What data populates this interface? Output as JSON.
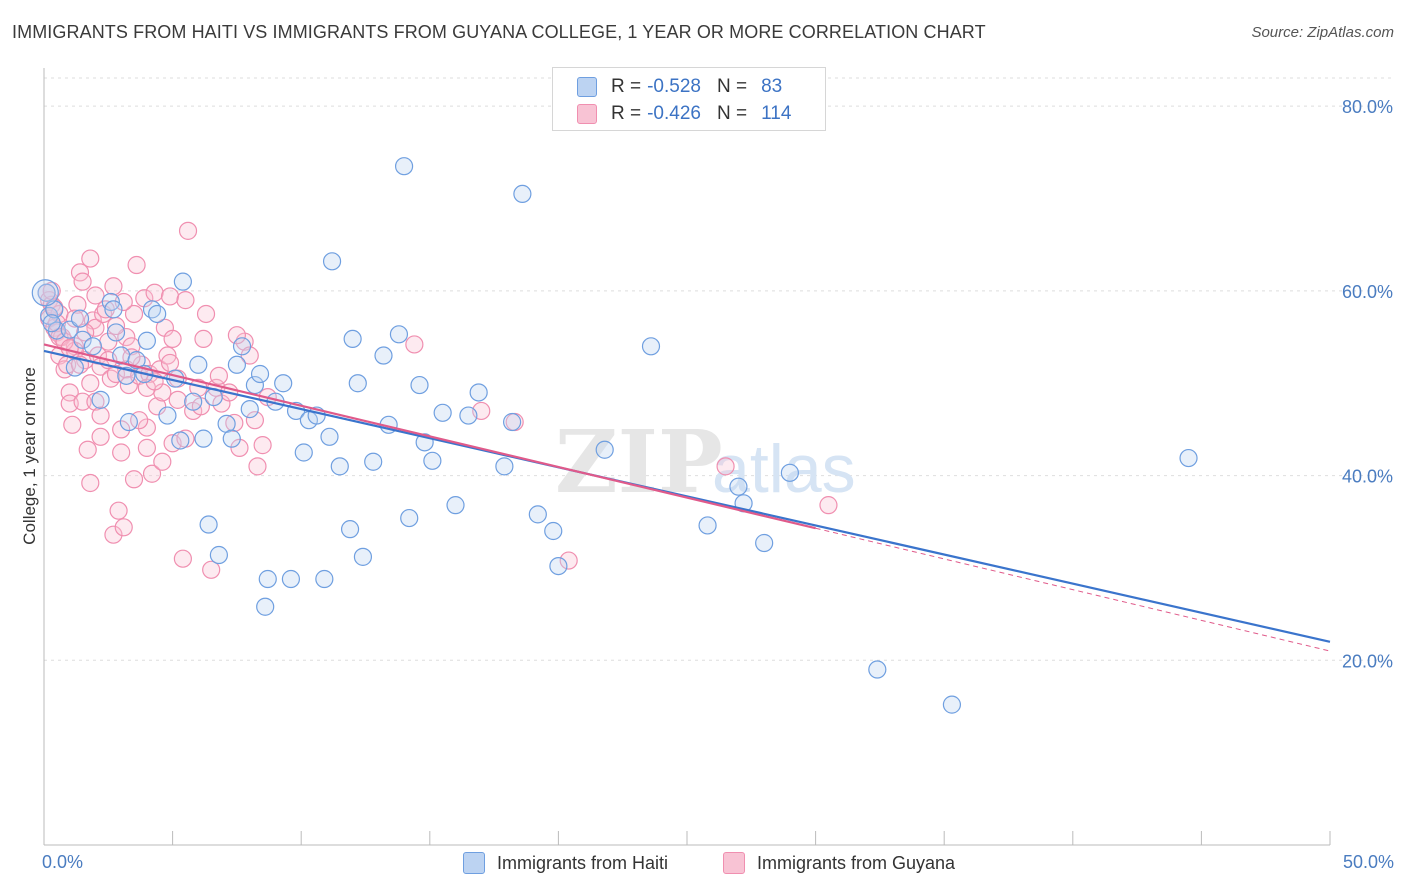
{
  "chart_data": {
    "type": "scatter",
    "title": "IMMIGRANTS FROM HAITI VS IMMIGRANTS FROM GUYANA COLLEGE, 1 YEAR OR MORE CORRELATION CHART",
    "source": "Source: ZipAtlas.com",
    "xlabel": "",
    "ylabel": "College, 1 year or more",
    "xlim": [
      0,
      50
    ],
    "ylim": [
      0,
      85
    ],
    "x_tick_labels": [
      "0.0%",
      "50.0%"
    ],
    "y_ticks": [
      20,
      40,
      60,
      80
    ],
    "y_tick_labels": [
      "20.0%",
      "40.0%",
      "60.0%",
      "80.0%"
    ],
    "grid": true,
    "legend_placement": "top-center",
    "watermark": "ZIPatlas",
    "series": [
      {
        "name": "Immigrants from Haiti",
        "color": "#6f9fe0",
        "line_color": "#3a74cc",
        "r": "-0.528",
        "n": "83",
        "trend": {
          "x0": 0,
          "y0": 53.5,
          "x1": 50,
          "y1": 22.0
        },
        "points": [
          [
            0.1,
            59.8
          ],
          [
            0.2,
            57.3
          ],
          [
            0.4,
            58.0
          ],
          [
            0.5,
            55.7
          ],
          [
            0.3,
            56.5
          ],
          [
            1.0,
            55.8
          ],
          [
            1.2,
            51.7
          ],
          [
            1.4,
            57.0
          ],
          [
            1.5,
            54.7
          ],
          [
            1.9,
            54.0
          ],
          [
            2.2,
            48.2
          ],
          [
            2.6,
            58.8
          ],
          [
            2.7,
            58.0
          ],
          [
            2.8,
            55.5
          ],
          [
            3.0,
            53.0
          ],
          [
            3.2,
            50.8
          ],
          [
            3.3,
            45.8
          ],
          [
            3.6,
            52.5
          ],
          [
            3.9,
            51.0
          ],
          [
            4.0,
            54.6
          ],
          [
            4.2,
            58.0
          ],
          [
            4.4,
            57.5
          ],
          [
            4.8,
            46.5
          ],
          [
            5.1,
            50.5
          ],
          [
            5.3,
            43.8
          ],
          [
            5.4,
            61.0
          ],
          [
            5.8,
            48.0
          ],
          [
            6.0,
            52.0
          ],
          [
            6.2,
            44.0
          ],
          [
            6.4,
            34.7
          ],
          [
            6.6,
            48.5
          ],
          [
            6.8,
            31.4
          ],
          [
            7.1,
            45.6
          ],
          [
            7.3,
            44.0
          ],
          [
            7.5,
            52.0
          ],
          [
            7.7,
            54.0
          ],
          [
            8.0,
            47.2
          ],
          [
            8.2,
            49.8
          ],
          [
            8.4,
            51.0
          ],
          [
            8.7,
            28.8
          ],
          [
            8.6,
            25.8
          ],
          [
            9.0,
            48.0
          ],
          [
            9.3,
            50.0
          ],
          [
            9.6,
            28.8
          ],
          [
            9.8,
            47.0
          ],
          [
            10.1,
            42.5
          ],
          [
            10.3,
            46.0
          ],
          [
            10.6,
            46.5
          ],
          [
            10.9,
            28.8
          ],
          [
            11.1,
            44.2
          ],
          [
            11.2,
            63.2
          ],
          [
            11.5,
            41.0
          ],
          [
            11.9,
            34.2
          ],
          [
            12.0,
            54.8
          ],
          [
            12.2,
            50.0
          ],
          [
            12.4,
            31.2
          ],
          [
            12.8,
            41.5
          ],
          [
            13.2,
            53.0
          ],
          [
            13.4,
            45.5
          ],
          [
            13.8,
            55.3
          ],
          [
            14.0,
            73.5
          ],
          [
            14.2,
            35.4
          ],
          [
            14.6,
            49.8
          ],
          [
            14.8,
            43.6
          ],
          [
            15.1,
            41.6
          ],
          [
            15.5,
            46.8
          ],
          [
            16.0,
            36.8
          ],
          [
            16.5,
            46.5
          ],
          [
            16.9,
            49.0
          ],
          [
            17.9,
            41.0
          ],
          [
            18.2,
            45.8
          ],
          [
            18.6,
            70.5
          ],
          [
            19.2,
            35.8
          ],
          [
            19.8,
            34.0
          ],
          [
            20.0,
            30.2
          ],
          [
            21.8,
            42.8
          ],
          [
            23.6,
            54.0
          ],
          [
            25.8,
            34.6
          ],
          [
            27.0,
            38.8
          ],
          [
            27.2,
            37.0
          ],
          [
            28.0,
            32.7
          ],
          [
            29.0,
            40.3
          ],
          [
            32.4,
            19.0
          ],
          [
            35.3,
            15.2
          ],
          [
            44.5,
            41.9
          ]
        ]
      },
      {
        "name": "Immigrants from Guyana",
        "color": "#f08fb0",
        "line_color": "#e05a8a",
        "r": "-0.426",
        "n": "114",
        "trend": {
          "x0": 0,
          "y0": 54.2,
          "x1": 30,
          "y1": 34.3
        },
        "trend_dashed": {
          "x0": 30,
          "y0": 34.3,
          "x1": 50,
          "y1": 21.0
        },
        "points": [
          [
            0.1,
            59.8
          ],
          [
            0.2,
            59.0
          ],
          [
            0.2,
            57.0
          ],
          [
            0.3,
            58.5
          ],
          [
            0.4,
            56.0
          ],
          [
            0.5,
            55.5
          ],
          [
            0.6,
            57.5
          ],
          [
            0.6,
            53.0
          ],
          [
            0.7,
            55.0
          ],
          [
            0.8,
            51.5
          ],
          [
            0.9,
            52.0
          ],
          [
            1.0,
            49.0
          ],
          [
            1.0,
            47.8
          ],
          [
            1.1,
            45.5
          ],
          [
            1.2,
            54.0
          ],
          [
            1.2,
            53.5
          ],
          [
            1.3,
            58.5
          ],
          [
            1.4,
            62.0
          ],
          [
            1.5,
            61.0
          ],
          [
            1.5,
            48.0
          ],
          [
            1.6,
            52.5
          ],
          [
            1.7,
            42.8
          ],
          [
            1.8,
            63.5
          ],
          [
            1.8,
            39.2
          ],
          [
            1.9,
            56.8
          ],
          [
            2.0,
            59.5
          ],
          [
            2.0,
            56.0
          ],
          [
            2.1,
            53.0
          ],
          [
            2.2,
            51.8
          ],
          [
            2.2,
            44.2
          ],
          [
            2.3,
            57.5
          ],
          [
            2.4,
            58.0
          ],
          [
            2.5,
            52.5
          ],
          [
            2.6,
            50.5
          ],
          [
            2.7,
            60.5
          ],
          [
            2.7,
            33.6
          ],
          [
            2.8,
            51.0
          ],
          [
            2.9,
            36.2
          ],
          [
            3.0,
            45.0
          ],
          [
            3.0,
            42.5
          ],
          [
            3.1,
            34.4
          ],
          [
            3.2,
            51.5
          ],
          [
            3.2,
            55.0
          ],
          [
            3.3,
            49.8
          ],
          [
            3.4,
            54.0
          ],
          [
            3.5,
            57.5
          ],
          [
            3.5,
            39.6
          ],
          [
            3.6,
            62.8
          ],
          [
            3.7,
            50.8
          ],
          [
            3.8,
            52.0
          ],
          [
            3.9,
            59.2
          ],
          [
            4.0,
            45.2
          ],
          [
            4.0,
            43.0
          ],
          [
            4.1,
            51.0
          ],
          [
            4.2,
            40.2
          ],
          [
            4.3,
            59.8
          ],
          [
            4.4,
            47.5
          ],
          [
            4.5,
            51.5
          ],
          [
            4.6,
            49.0
          ],
          [
            4.7,
            56.0
          ],
          [
            4.8,
            53.0
          ],
          [
            4.9,
            59.4
          ],
          [
            5.0,
            54.8
          ],
          [
            5.0,
            43.5
          ],
          [
            5.2,
            50.5
          ],
          [
            5.4,
            31.0
          ],
          [
            5.5,
            59.0
          ],
          [
            5.6,
            66.5
          ],
          [
            5.8,
            47.0
          ],
          [
            6.0,
            49.5
          ],
          [
            6.2,
            54.8
          ],
          [
            6.3,
            57.5
          ],
          [
            6.5,
            29.8
          ],
          [
            6.7,
            49.5
          ],
          [
            6.9,
            47.8
          ],
          [
            7.2,
            49.0
          ],
          [
            7.4,
            45.7
          ],
          [
            7.6,
            43.0
          ],
          [
            7.8,
            54.5
          ],
          [
            8.0,
            53.0
          ],
          [
            8.2,
            46.0
          ],
          [
            8.3,
            41.0
          ],
          [
            8.5,
            43.3
          ],
          [
            8.7,
            48.5
          ],
          [
            14.4,
            54.2
          ],
          [
            17.0,
            47.0
          ],
          [
            18.3,
            45.8
          ],
          [
            20.4,
            30.8
          ],
          [
            26.5,
            41.0
          ],
          [
            30.5,
            36.8
          ],
          [
            0.3,
            60.0
          ],
          [
            0.4,
            58.2
          ],
          [
            0.5,
            56.5
          ],
          [
            0.6,
            55.0
          ],
          [
            0.8,
            54.5
          ],
          [
            1.0,
            53.8
          ],
          [
            1.2,
            57.0
          ],
          [
            1.4,
            52.0
          ],
          [
            1.6,
            55.5
          ],
          [
            1.8,
            50.0
          ],
          [
            2.0,
            48.0
          ],
          [
            2.2,
            46.5
          ],
          [
            2.5,
            54.5
          ],
          [
            2.8,
            56.2
          ],
          [
            3.1,
            58.8
          ],
          [
            3.4,
            52.8
          ],
          [
            3.7,
            46.0
          ],
          [
            4.0,
            49.5
          ],
          [
            4.3,
            50.2
          ],
          [
            4.6,
            41.5
          ],
          [
            4.9,
            52.2
          ],
          [
            5.2,
            48.2
          ],
          [
            5.5,
            44.0
          ],
          [
            6.1,
            47.5
          ],
          [
            6.8,
            50.8
          ],
          [
            7.5,
            55.2
          ]
        ]
      }
    ]
  },
  "legend": {
    "r_label": "R =",
    "n_label": "N ="
  }
}
